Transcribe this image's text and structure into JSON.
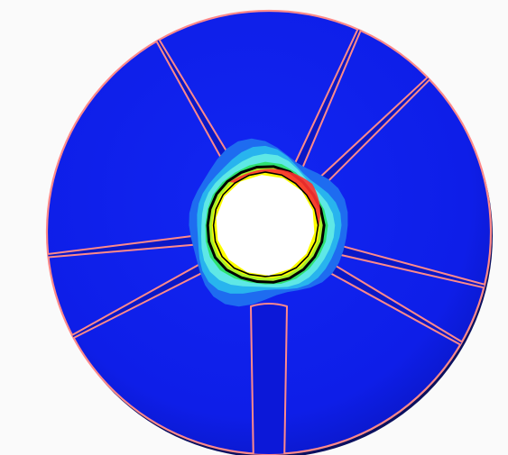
{
  "figure": {
    "type": "contour-plot-disk-with-radial-slots",
    "slot_count": 7,
    "colors": {
      "background": "#fafafa",
      "disk_fill": "#1020ee",
      "disk_edge_shadow": "#0a1060",
      "outline": "#ff8a8a",
      "hole_fill": "#ffffff",
      "contour_levels": [
        "#1020ee",
        "#1e6cf0",
        "#28b4ee",
        "#5ee8e6",
        "#2ee070",
        "#a8f028",
        "#ffff00",
        "#ff3030",
        "#000000"
      ]
    }
  }
}
